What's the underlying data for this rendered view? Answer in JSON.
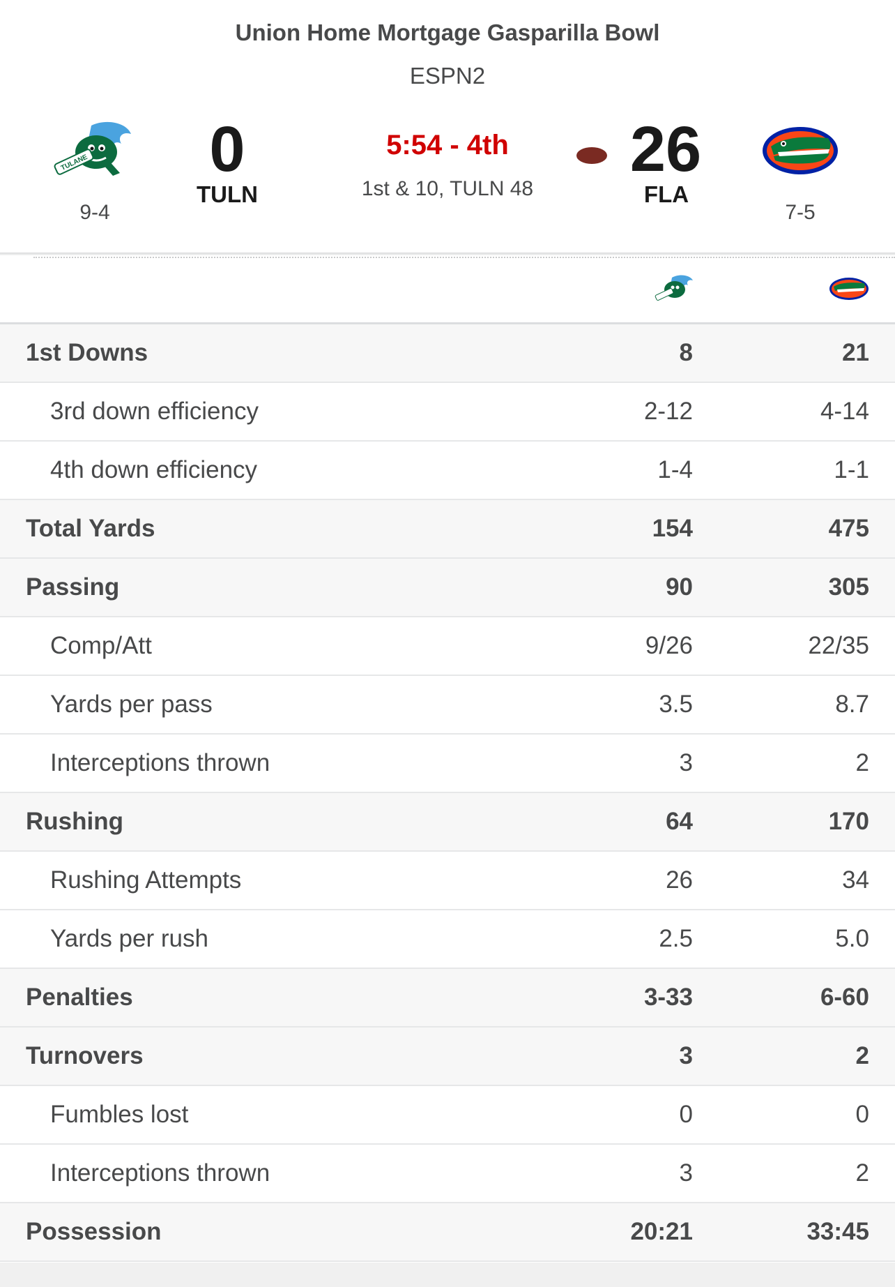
{
  "game": {
    "bowl": "Union Home Mortgage Gasparilla Bowl",
    "network": "ESPN2",
    "clock": "5:54 - 4th",
    "situation": "1st & 10, TULN 48"
  },
  "home_team": {
    "abbr": "TULN",
    "score": "0",
    "record": "9-4",
    "logo": "tulane-green-wave-icon",
    "color": "#0c6b3f"
  },
  "away_team": {
    "abbr": "FLA",
    "score": "26",
    "record": "7-5",
    "logo": "florida-gators-icon",
    "color": "#0021a5",
    "has_possession": true
  },
  "accent_colors": {
    "clock_red": "#d00000",
    "football_brown": "#7a2a22"
  },
  "stats": [
    {
      "label": "1st Downs",
      "home": "8",
      "away": "21"
    },
    {
      "label": "3rd down efficiency",
      "home": "2-12",
      "away": "4-14"
    },
    {
      "label": "4th down efficiency",
      "home": "1-4",
      "away": "1-1"
    },
    {
      "label": "Total Yards",
      "home": "154",
      "away": "475"
    },
    {
      "label": "Passing",
      "home": "90",
      "away": "305"
    },
    {
      "label": "Comp/Att",
      "home": "9/26",
      "away": "22/35"
    },
    {
      "label": "Yards per pass",
      "home": "3.5",
      "away": "8.7"
    },
    {
      "label": "Interceptions thrown",
      "home": "3",
      "away": "2"
    },
    {
      "label": "Rushing",
      "home": "64",
      "away": "170"
    },
    {
      "label": "Rushing Attempts",
      "home": "26",
      "away": "34"
    },
    {
      "label": "Yards per rush",
      "home": "2.5",
      "away": "5.0"
    },
    {
      "label": "Penalties",
      "home": "3-33",
      "away": "6-60"
    },
    {
      "label": "Turnovers",
      "home": "3",
      "away": "2"
    },
    {
      "label": "Fumbles lost",
      "home": "0",
      "away": "0"
    },
    {
      "label": "Interceptions thrown",
      "home": "3",
      "away": "2"
    },
    {
      "label": "Possession",
      "home": "20:21",
      "away": "33:45"
    }
  ]
}
